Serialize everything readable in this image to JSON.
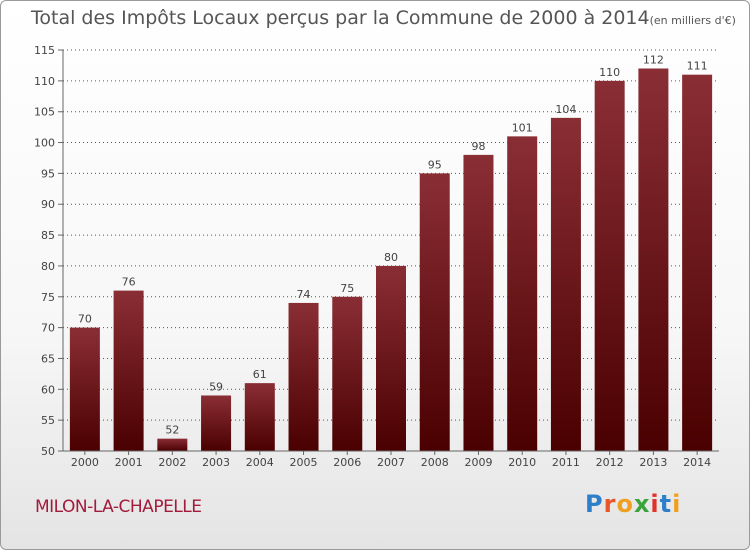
{
  "header": {
    "title": "Total des Impôts Locaux perçus par la Commune de 2000 à 2014",
    "unit": "(en milliers d'€)"
  },
  "footer": {
    "commune": "MILON-LA-CHAPELLE",
    "logo": [
      "P",
      "r",
      "o",
      "x",
      "i",
      "t",
      "i"
    ],
    "logo_colors": [
      "#2e7fc9",
      "#e8562a",
      "#f0a020",
      "#3aa33a",
      "#e0312b",
      "#2e7fc9",
      "#f0a020"
    ]
  },
  "colors": {
    "bar_top": "#8a2e35",
    "bar_bottom": "#4a0000",
    "grid": "#555555"
  },
  "chart_data": {
    "type": "bar",
    "title": "Total des Impôts Locaux perçus par la Commune de 2000 à 2014",
    "xlabel": "",
    "ylabel": "",
    "categories": [
      "2000",
      "2001",
      "2002",
      "2003",
      "2004",
      "2005",
      "2006",
      "2007",
      "2008",
      "2009",
      "2010",
      "2011",
      "2012",
      "2013",
      "2014"
    ],
    "values": [
      70,
      76,
      52,
      59,
      61,
      74,
      75,
      80,
      95,
      98,
      101,
      104,
      110,
      112,
      111
    ],
    "ylim": [
      50,
      115
    ],
    "yticks": [
      50,
      55,
      60,
      65,
      70,
      75,
      80,
      85,
      90,
      95,
      100,
      105,
      110,
      115
    ],
    "grid": true
  }
}
